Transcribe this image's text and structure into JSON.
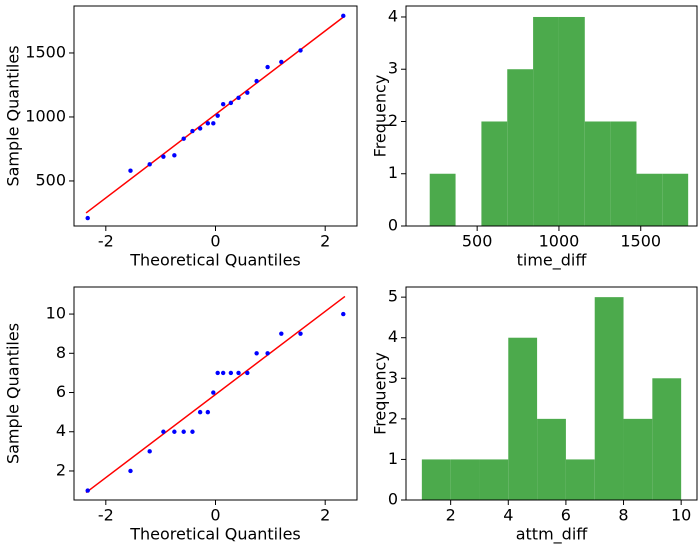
{
  "chart_data": [
    {
      "type": "qq",
      "xlabel": "Theoretical Quantiles",
      "ylabel": "Sample Quantiles",
      "x": [
        -2.33,
        -1.55,
        -1.2,
        -0.95,
        -0.75,
        -0.58,
        -0.42,
        -0.28,
        -0.14,
        -0.04,
        0.04,
        0.14,
        0.28,
        0.42,
        0.58,
        0.75,
        0.95,
        1.2,
        1.55,
        2.33
      ],
      "values": [
        210,
        580,
        630,
        690,
        700,
        830,
        890,
        910,
        950,
        950,
        1010,
        1100,
        1110,
        1150,
        1190,
        1280,
        1390,
        1430,
        1520,
        1790
      ],
      "color": "#0000ff",
      "line": {
        "x": [
          -2.36,
          2.36
        ],
        "values": [
          250,
          1790
        ],
        "color": "#ff0000"
      },
      "xlim": [
        -2.58,
        2.58
      ],
      "xticks": [
        -2,
        0,
        2
      ],
      "ylim": [
        148,
        1867
      ],
      "yticks": [
        500,
        1000,
        1500
      ]
    },
    {
      "type": "histogram",
      "xlabel": "time_diff",
      "ylabel": "Frequency",
      "bins": [
        210,
        368,
        526,
        684,
        842,
        1000,
        1158,
        1316,
        1474,
        1632,
        1790
      ],
      "values": [
        1,
        0,
        2,
        3,
        4,
        4,
        2,
        2,
        1,
        1
      ],
      "color": "#4caa4c",
      "xlim": [
        65,
        1844
      ],
      "xticks": [
        500,
        1000,
        1500
      ],
      "ylim": [
        0,
        4.21
      ],
      "yticks": [
        0,
        1,
        2,
        3,
        4
      ]
    },
    {
      "type": "qq",
      "xlabel": "Theoretical Quantiles",
      "ylabel": "Sample Quantiles",
      "x": [
        -2.33,
        -1.55,
        -1.2,
        -0.95,
        -0.75,
        -0.58,
        -0.42,
        -0.28,
        -0.14,
        -0.04,
        0.04,
        0.14,
        0.28,
        0.42,
        0.58,
        0.75,
        0.95,
        1.2,
        1.55,
        2.33
      ],
      "values": [
        1,
        2,
        3,
        4,
        4,
        4,
        4,
        5,
        5,
        6,
        7,
        7,
        7,
        7,
        7,
        8,
        8,
        9,
        9,
        10
      ],
      "color": "#0000ff",
      "line": {
        "x": [
          -2.36,
          2.36
        ],
        "values": [
          0.9,
          10.9
        ],
        "color": "#ff0000"
      },
      "xlim": [
        -2.58,
        2.58
      ],
      "xticks": [
        -2,
        0,
        2
      ],
      "ylim": [
        0.52,
        11.38
      ],
      "yticks": [
        2,
        4,
        6,
        8,
        10
      ]
    },
    {
      "type": "histogram",
      "xlabel": "attm_diff",
      "ylabel": "Frequency",
      "bins": [
        1,
        2,
        3,
        4,
        5,
        6,
        7,
        8,
        9,
        10
      ],
      "values": [
        1,
        1,
        1,
        4,
        2,
        1,
        5,
        2,
        3
      ],
      "color": "#4caa4c",
      "xlim": [
        0.45,
        10.55
      ],
      "xticks": [
        2,
        4,
        6,
        8,
        10
      ],
      "ylim": [
        0,
        5.25
      ],
      "yticks": [
        0,
        1,
        2,
        3,
        4,
        5
      ]
    }
  ]
}
